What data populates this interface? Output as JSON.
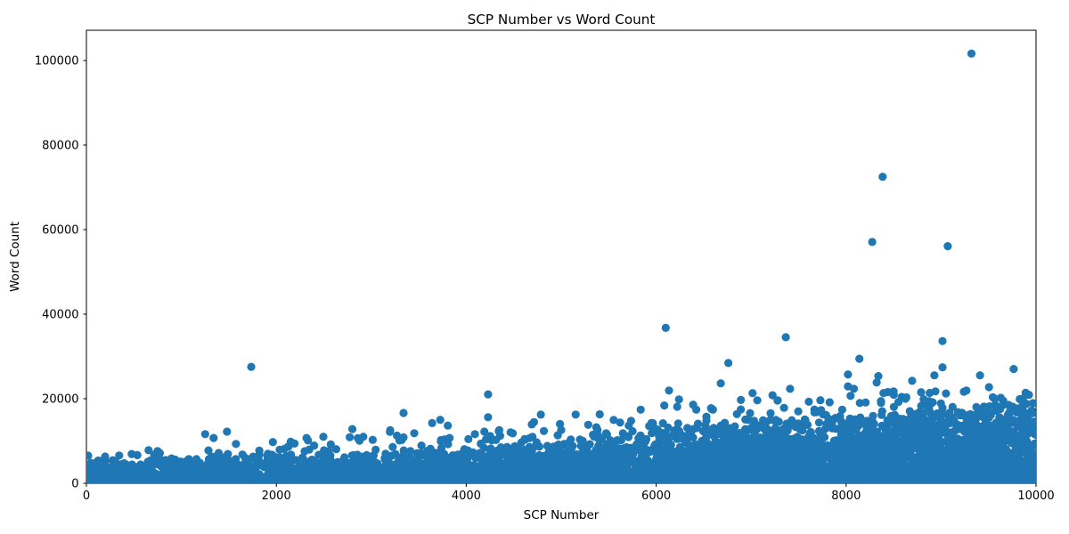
{
  "window": {
    "title": "SCP Number vs Word Count"
  },
  "chart_data": {
    "type": "scatter",
    "title": "SCP Number vs Word Count",
    "xlabel": "SCP Number",
    "ylabel": "Word Count",
    "xlim": [
      0,
      10000
    ],
    "ylim": [
      0,
      107000
    ],
    "x_ticks": [
      0,
      2000,
      4000,
      6000,
      8000,
      10000
    ],
    "x_tick_labels": [
      "0",
      "2000",
      "4000",
      "6000",
      "8000",
      "10000"
    ],
    "y_ticks": [
      0,
      20000,
      40000,
      60000,
      80000,
      100000
    ],
    "y_tick_labels": [
      "0",
      "20000",
      "40000",
      "60000",
      "80000",
      "100000"
    ],
    "grid": false,
    "legend": false,
    "marker": {
      "color": "#1f77b4",
      "radius_px": 4.6,
      "opacity": 1.0
    },
    "outliers": [
      [
        9320,
        101500
      ],
      [
        8385,
        72400
      ],
      [
        8275,
        57000
      ],
      [
        9070,
        56000
      ],
      [
        6100,
        36700
      ],
      [
        7365,
        34500
      ],
      [
        9015,
        33600
      ],
      [
        8140,
        29400
      ],
      [
        6760,
        28400
      ],
      [
        1735,
        27500
      ],
      [
        9015,
        27400
      ],
      [
        9765,
        27000
      ],
      [
        8020,
        25700
      ],
      [
        8930,
        25500
      ],
      [
        9410,
        25500
      ],
      [
        8340,
        25300
      ],
      [
        8695,
        24200
      ],
      [
        6680,
        23600
      ],
      [
        8020,
        22900
      ],
      [
        9505,
        22700
      ],
      [
        7410,
        22300
      ],
      [
        6135,
        21900
      ],
      [
        8500,
        21700
      ],
      [
        8940,
        21700
      ],
      [
        8790,
        21500
      ],
      [
        7015,
        21300
      ],
      [
        4230,
        21000
      ],
      [
        7225,
        20800
      ],
      [
        6240,
        19800
      ],
      [
        8585,
        20400
      ],
      [
        7065,
        19600
      ],
      [
        7280,
        19600
      ],
      [
        3340,
        16600
      ],
      [
        5405,
        16300
      ],
      [
        4785,
        16200
      ],
      [
        4230,
        15600
      ],
      [
        4690,
        13900
      ],
      [
        2800,
        12800
      ],
      [
        5000,
        12600
      ],
      [
        4190,
        12200
      ],
      [
        1480,
        12200
      ],
      [
        1250,
        11600
      ],
      [
        4490,
        11800
      ],
      [
        2495,
        11000
      ],
      [
        1340,
        10700
      ],
      [
        4670,
        10700
      ],
      [
        1575,
        9300
      ],
      [
        655,
        7800
      ],
      [
        750,
        7600
      ],
      [
        835,
        5500
      ],
      [
        1435,
        6100
      ],
      [
        1905,
        6500
      ],
      [
        1960,
        5500
      ],
      [
        197,
        6300
      ],
      [
        345,
        6550
      ]
    ],
    "dense_cloud": {
      "description": "Thousands of articles form a solid band near the bottom; word counts and density both grow with SCP number.",
      "seed": 42,
      "n_points": 5200,
      "solid_fraction": 0.86,
      "band_top_anchors": [
        [
          0,
          4000
        ],
        [
          1500,
          4300
        ],
        [
          2500,
          5000
        ],
        [
          3500,
          5800
        ],
        [
          4500,
          6800
        ],
        [
          5500,
          8000
        ],
        [
          6500,
          9300
        ],
        [
          7500,
          10800
        ],
        [
          8500,
          12300
        ],
        [
          10000,
          14500
        ]
      ],
      "cloud_top_anchors": [
        [
          0,
          6500
        ],
        [
          1500,
          7600
        ],
        [
          2500,
          11000
        ],
        [
          3500,
          12500
        ],
        [
          4500,
          14000
        ],
        [
          5500,
          15500
        ],
        [
          6500,
          17500
        ],
        [
          7500,
          19500
        ],
        [
          8500,
          21000
        ],
        [
          10000,
          20000
        ]
      ],
      "density_anchors": [
        [
          0,
          0.35
        ],
        [
          2000,
          0.42
        ],
        [
          4000,
          0.55
        ],
        [
          6000,
          0.75
        ],
        [
          8000,
          1.0
        ],
        [
          10000,
          1.0
        ]
      ]
    }
  }
}
